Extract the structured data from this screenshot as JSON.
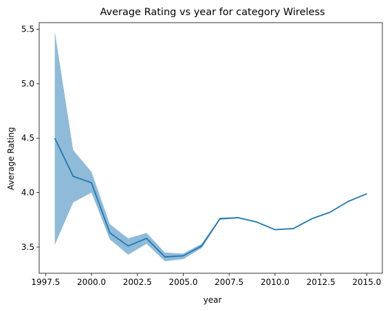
{
  "chart_data": {
    "type": "line",
    "title": "Average Rating vs year for category Wireless",
    "xlabel": "year",
    "ylabel": "Average Rating",
    "xlim": [
      1997.15,
      2015.85
    ],
    "ylim": [
      3.26,
      5.56
    ],
    "xticks": [
      1997.5,
      2000.0,
      2002.5,
      2005.0,
      2007.5,
      2010.0,
      2012.5,
      2015.0
    ],
    "xtick_labels": [
      "1997.5",
      "2000.0",
      "2002.5",
      "2005.0",
      "2007.5",
      "2010.0",
      "2012.5",
      "2015.0"
    ],
    "yticks": [
      3.5,
      4.0,
      4.5,
      5.0,
      5.5
    ],
    "ytick_labels": [
      "3.5",
      "4.0",
      "4.5",
      "5.0",
      "5.5"
    ],
    "grid": false,
    "series": [
      {
        "color": "#1f77b4",
        "band_color": "#1f77b4",
        "x": [
          1998,
          1999,
          2000,
          2001,
          2002,
          2003,
          2004,
          2005,
          2006,
          2007,
          2008,
          2009,
          2010,
          2011,
          2012,
          2013,
          2014,
          2015
        ],
        "y": [
          4.5,
          4.15,
          4.09,
          3.63,
          3.51,
          3.58,
          3.41,
          3.42,
          3.51,
          3.76,
          3.77,
          3.73,
          3.66,
          3.67,
          3.76,
          3.82,
          3.92,
          3.99
        ],
        "ci_low": [
          3.52,
          3.91,
          4.0,
          3.57,
          3.43,
          3.53,
          3.37,
          3.39,
          3.49,
          3.75,
          3.765,
          3.725,
          3.655,
          3.665,
          3.755,
          3.815,
          3.915,
          3.985
        ],
        "ci_high": [
          5.48,
          4.39,
          4.19,
          3.71,
          3.58,
          3.63,
          3.45,
          3.44,
          3.53,
          3.77,
          3.775,
          3.735,
          3.665,
          3.675,
          3.765,
          3.825,
          3.925,
          3.995
        ]
      }
    ]
  }
}
